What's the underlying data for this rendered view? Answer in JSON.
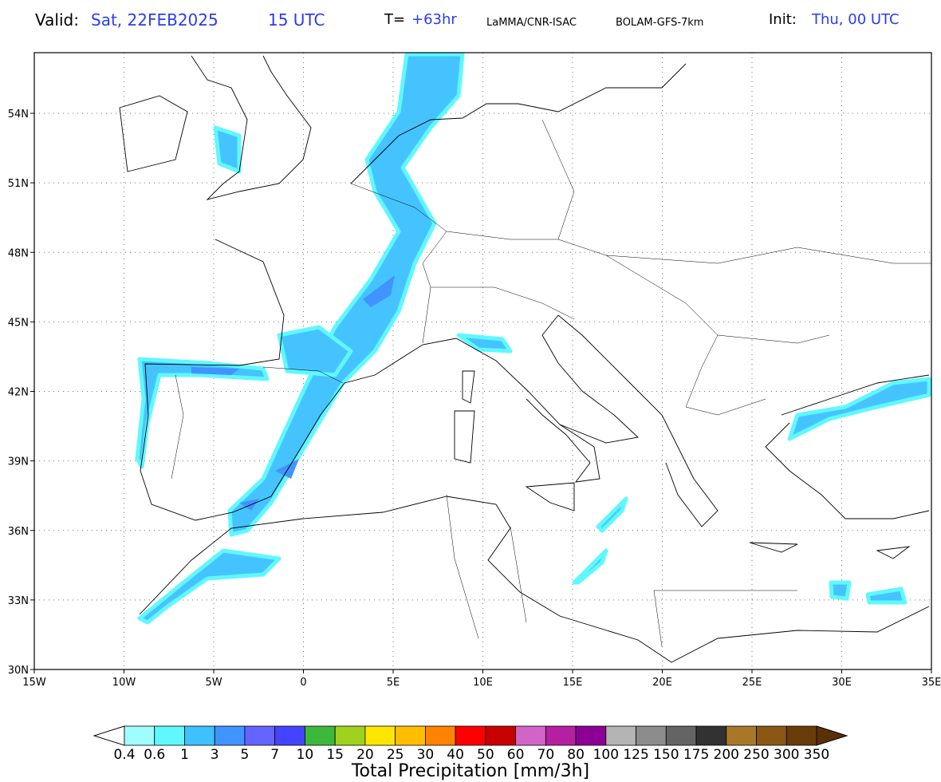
{
  "header": {
    "valid_label": "Valid:",
    "valid_day": "Sat, 22FEB2025",
    "valid_hour": "15 UTC",
    "lead_label": "T=",
    "lead_value": "+63hr",
    "institute": "LaMMA/CNR-ISAC",
    "model": "BOLAM-GFS-7km",
    "init_label": "Init:",
    "init_value": "Thu, 00 UTC"
  },
  "map": {
    "lon_labels": [
      "15W",
      "10W",
      "5W",
      "0",
      "5E",
      "10E",
      "15E",
      "20E",
      "25E",
      "30E",
      "35E"
    ],
    "lat_labels": [
      "30N",
      "33N",
      "36N",
      "39N",
      "42N",
      "45N",
      "48N",
      "51N",
      "54N"
    ]
  },
  "colorbar": {
    "labels": [
      "0.4",
      "0.6",
      "1",
      "3",
      "5",
      "7",
      "10",
      "15",
      "20",
      "25",
      "30",
      "40",
      "50",
      "60",
      "70",
      "80",
      "100",
      "125",
      "150",
      "175",
      "200",
      "250",
      "300",
      "350"
    ],
    "colors": [
      "#9ffcff",
      "#5ff8ff",
      "#3fc0ff",
      "#4193ff",
      "#6464ff",
      "#4444ff",
      "#3cb83c",
      "#9fd21e",
      "#ffe600",
      "#ffbe00",
      "#ff8200",
      "#ff0000",
      "#c80000",
      "#d264c8",
      "#b4209f",
      "#8c0096",
      "#b4b4b4",
      "#8c8c8c",
      "#646464",
      "#323232",
      "#a87828",
      "#8a5812",
      "#6a3c0a"
    ],
    "under_color": "#ffffff",
    "over_color": "#5a3008",
    "title": "Total Precipitation [mm/3h]"
  }
}
